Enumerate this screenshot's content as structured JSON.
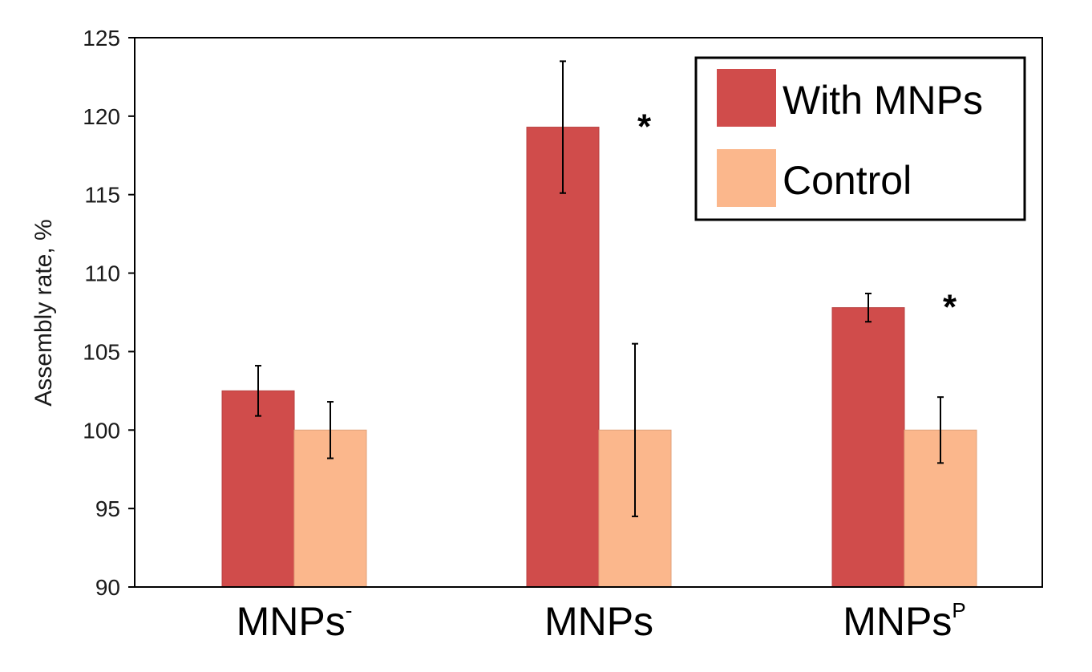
{
  "chart_data": {
    "type": "bar",
    "title": "",
    "xlabel": "",
    "ylabel": "Assembly rate, %",
    "ylim": [
      90,
      125
    ],
    "yticks": [
      90,
      95,
      100,
      105,
      110,
      115,
      120,
      125
    ],
    "categories": [
      {
        "base": "MNPs",
        "sup": "-"
      },
      {
        "base": "MNPs",
        "sup": ""
      },
      {
        "base": "MNPs",
        "sup": "P"
      }
    ],
    "series": [
      {
        "name": "With MNPs",
        "color": "#d04c4b",
        "values": [
          102.5,
          119.3,
          107.8
        ],
        "errors": [
          1.6,
          4.2,
          0.9
        ]
      },
      {
        "name": "Control",
        "color": "#fbb78c",
        "values": [
          100,
          100,
          100
        ],
        "errors": [
          1.8,
          5.5,
          2.1
        ]
      }
    ],
    "significance": [
      {
        "category_index": 1,
        "series_index": 0,
        "label": "*"
      },
      {
        "category_index": 2,
        "series_index": 0,
        "label": "*"
      }
    ],
    "legend": {
      "placement": "top-right",
      "entries": [
        "With MNPs",
        "Control"
      ]
    }
  }
}
